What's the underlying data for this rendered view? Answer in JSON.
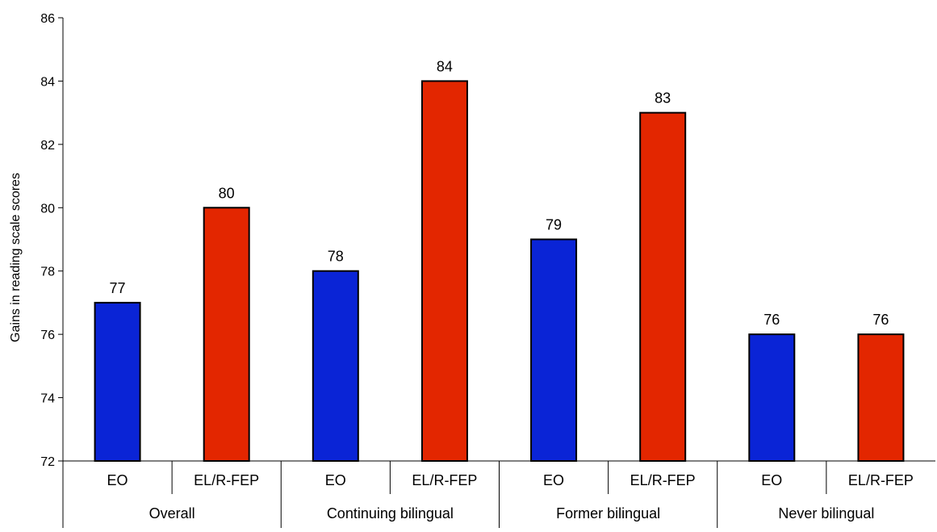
{
  "chart_data": {
    "type": "bar",
    "ylabel": "Gains in reading scale scores",
    "ylim": [
      72,
      86
    ],
    "yticks": [
      72,
      74,
      76,
      78,
      80,
      82,
      84,
      86
    ],
    "groups": [
      {
        "label": "Overall",
        "bars": [
          {
            "category": "EO",
            "value": 77
          },
          {
            "category": "EL/R-FEP",
            "value": 80
          }
        ]
      },
      {
        "label": "Continuing bilingual",
        "bars": [
          {
            "category": "EO",
            "value": 78
          },
          {
            "category": "EL/R-FEP",
            "value": 84
          }
        ]
      },
      {
        "label": "Former bilingual",
        "bars": [
          {
            "category": "EO",
            "value": 79
          },
          {
            "category": "EL/R-FEP",
            "value": 83
          }
        ]
      },
      {
        "label": "Never bilingual",
        "bars": [
          {
            "category": "EO",
            "value": 76
          },
          {
            "category": "EL/R-FEP",
            "value": 76
          }
        ]
      }
    ],
    "colors": {
      "EO": "#0a24d6",
      "EL/R-FEP": "#e32600"
    },
    "grid": false,
    "legend": "none"
  }
}
